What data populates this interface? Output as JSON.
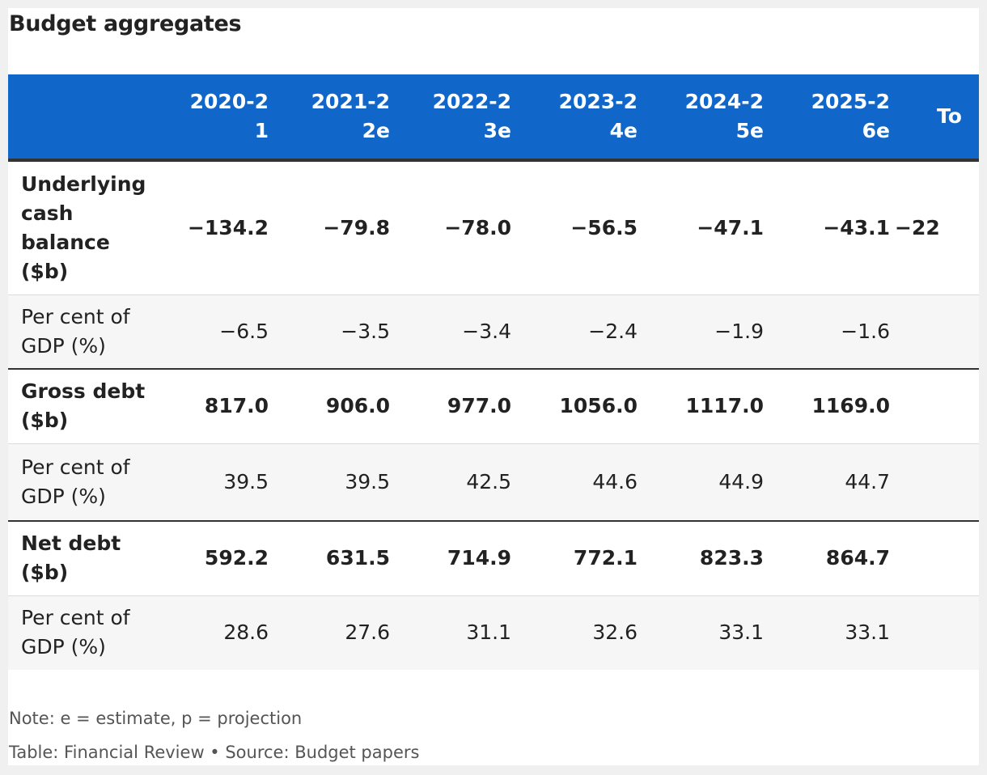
{
  "title": "Budget aggregates",
  "note": "Note: e = estimate, p = projection",
  "source": "Table: Financial Review • Source: Budget papers",
  "colors": {
    "header_bg": "#1167c9",
    "header_text": "#ffffff",
    "row_alt_bg": "#f6f6f6",
    "rule": "#333333"
  },
  "chart_data": {
    "type": "table",
    "title": "Budget aggregates",
    "columns": [
      "",
      "2020-21",
      "2021-22e",
      "2022-23e",
      "2023-24e",
      "2024-25e",
      "2025-26e",
      "To"
    ],
    "rows": [
      {
        "label": "Underlying cash balance ($b)",
        "emphasis": true,
        "cells": [
          "−134.2",
          "−79.8",
          "−78.0",
          "−56.5",
          "−47.1",
          "−43.1",
          "−22"
        ]
      },
      {
        "label": "Per cent of GDP (%)",
        "emphasis": false,
        "cells": [
          "−6.5",
          "−3.5",
          "−3.4",
          "−2.4",
          "−1.9",
          "−1.6",
          ""
        ]
      },
      {
        "label": "Gross debt ($b)",
        "emphasis": true,
        "cells": [
          "817.0",
          "906.0",
          "977.0",
          "1056.0",
          "1117.0",
          "1169.0",
          ""
        ]
      },
      {
        "label": "Per cent of GDP (%)",
        "emphasis": false,
        "cells": [
          "39.5",
          "39.5",
          "42.5",
          "44.6",
          "44.9",
          "44.7",
          ""
        ]
      },
      {
        "label": "Net debt ($b)",
        "emphasis": true,
        "cells": [
          "592.2",
          "631.5",
          "714.9",
          "772.1",
          "823.3",
          "864.7",
          ""
        ]
      },
      {
        "label": "Per cent of GDP (%)",
        "emphasis": false,
        "cells": [
          "28.6",
          "27.6",
          "31.1",
          "32.6",
          "33.1",
          "33.1",
          ""
        ]
      }
    ]
  }
}
